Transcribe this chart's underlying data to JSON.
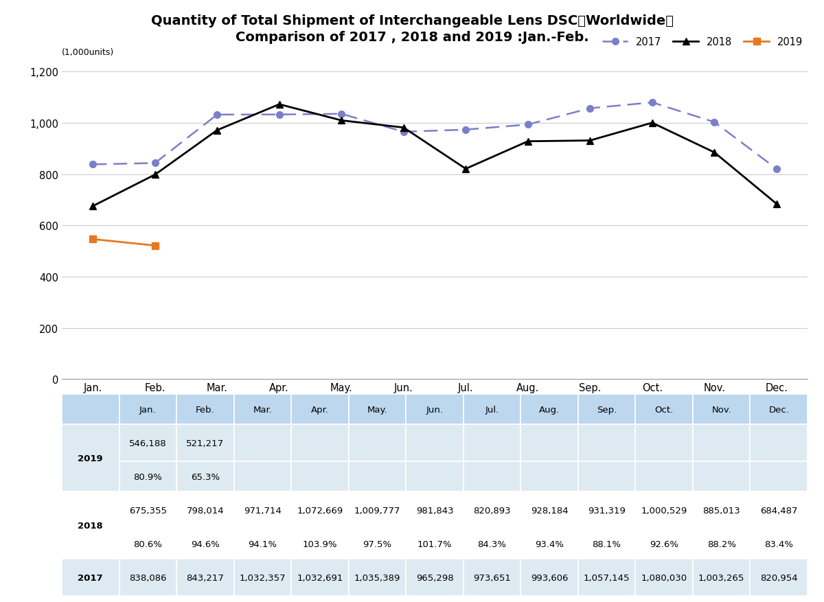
{
  "title_line1": "Quantity of Total Shipment of Interchangeable Lens DSC【Worldwide】",
  "title_line2": "Comparison of 2017 , 2018 and 2019 :Jan.-Feb.",
  "ylabel_units": "(1,000units)",
  "months": [
    "Jan.",
    "Feb.",
    "Mar.",
    "Apr.",
    "May.",
    "Jun.",
    "Jul.",
    "Aug.",
    "Sep.",
    "Oct.",
    "Nov.",
    "Dec."
  ],
  "data_2017": [
    838086,
    843217,
    1032357,
    1032691,
    1035389,
    965298,
    973651,
    993606,
    1057145,
    1080030,
    1003265,
    820954
  ],
  "data_2018": [
    675355,
    798014,
    971714,
    1072669,
    1009777,
    981843,
    820893,
    928184,
    931319,
    1000529,
    885013,
    684487
  ],
  "data_2019": [
    546188,
    521217
  ],
  "color_2017": "#7B7EC8",
  "color_2018": "#000000",
  "color_2019": "#E87722",
  "ylim": [
    0,
    1200
  ],
  "yticks": [
    0,
    200,
    400,
    600,
    800,
    1000,
    1200
  ],
  "table_header_bg": "#BDD7EE",
  "table_row_bg_light": "#DEEAF1",
  "table_row_bg_white": "#FFFFFF",
  "table_2019_row1": [
    "546,188",
    "521,217",
    "",
    "",
    "",
    "",
    "",
    "",
    "",
    "",
    "",
    ""
  ],
  "table_2019_row2": [
    "80.9%",
    "65.3%",
    "",
    "",
    "",
    "",
    "",
    "",
    "",
    "",
    "",
    ""
  ],
  "table_2018_row1": [
    "675,355",
    "798,014",
    "971,714",
    "1,072,669",
    "1,009,777",
    "981,843",
    "820,893",
    "928,184",
    "931,319",
    "1,000,529",
    "885,013",
    "684,487"
  ],
  "table_2018_row2": [
    "80.6%",
    "94.6%",
    "94.1%",
    "103.9%",
    "97.5%",
    "101.7%",
    "84.3%",
    "93.4%",
    "88.1%",
    "92.6%",
    "88.2%",
    "83.4%"
  ],
  "table_2017_row": [
    "838,086",
    "843,217",
    "1,032,357",
    "1,032,691",
    "1,035,389",
    "965,298",
    "973,651",
    "993,606",
    "1,057,145",
    "1,080,030",
    "1,003,265",
    "820,954"
  ]
}
